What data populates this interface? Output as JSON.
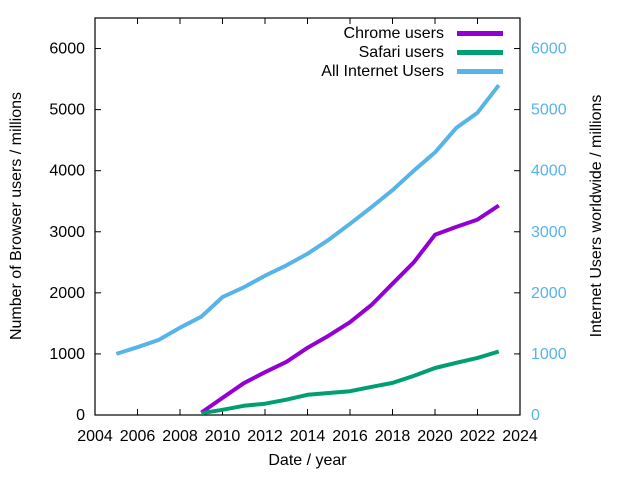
{
  "chart_data": {
    "type": "line",
    "xlabel": "Date / year",
    "ylabel": "Number of Browser users / millions",
    "y2label": "Internet Users worldwide / millions",
    "xlim": [
      2004,
      2024
    ],
    "ylim": [
      0,
      6500
    ],
    "x_ticks": [
      2004,
      2006,
      2008,
      2010,
      2012,
      2014,
      2016,
      2018,
      2020,
      2022,
      2024
    ],
    "y_ticks": [
      0,
      1000,
      2000,
      3000,
      4000,
      5000,
      6000
    ],
    "grid": false,
    "legend_position": "inside-top-right",
    "colors": {
      "axis": "#000000",
      "x_tick_label": "#000000",
      "y_tick_label": "#000000",
      "y2_tick_label": "#56b4e9",
      "background": "#ffffff"
    },
    "series": [
      {
        "name": "Chrome users",
        "color": "#9400d3",
        "axis": "left",
        "x": [
          2009,
          2010,
          2011,
          2012,
          2013,
          2014,
          2015,
          2016,
          2017,
          2018,
          2019,
          2020,
          2021,
          2022,
          2023
        ],
        "values": [
          40,
          280,
          520,
          700,
          870,
          1100,
          1300,
          1520,
          1800,
          2150,
          2500,
          2950,
          3080,
          3200,
          3430
        ]
      },
      {
        "name": "Safari users",
        "color": "#009e73",
        "axis": "left",
        "x": [
          2009,
          2010,
          2011,
          2012,
          2013,
          2014,
          2015,
          2016,
          2017,
          2018,
          2019,
          2020,
          2021,
          2022,
          2023
        ],
        "values": [
          30,
          85,
          150,
          185,
          250,
          330,
          360,
          390,
          460,
          525,
          640,
          770,
          855,
          935,
          1040
        ]
      },
      {
        "name": "All Internet Users",
        "color": "#56b4e9",
        "axis": "right",
        "x": [
          2005,
          2006,
          2007,
          2008,
          2009,
          2010,
          2011,
          2012,
          2013,
          2014,
          2015,
          2016,
          2017,
          2018,
          2019,
          2020,
          2021,
          2022,
          2023
        ],
        "values": [
          1000,
          1110,
          1230,
          1430,
          1610,
          1930,
          2090,
          2280,
          2450,
          2640,
          2870,
          3130,
          3400,
          3680,
          4000,
          4300,
          4700,
          4950,
          5400
        ]
      }
    ]
  }
}
